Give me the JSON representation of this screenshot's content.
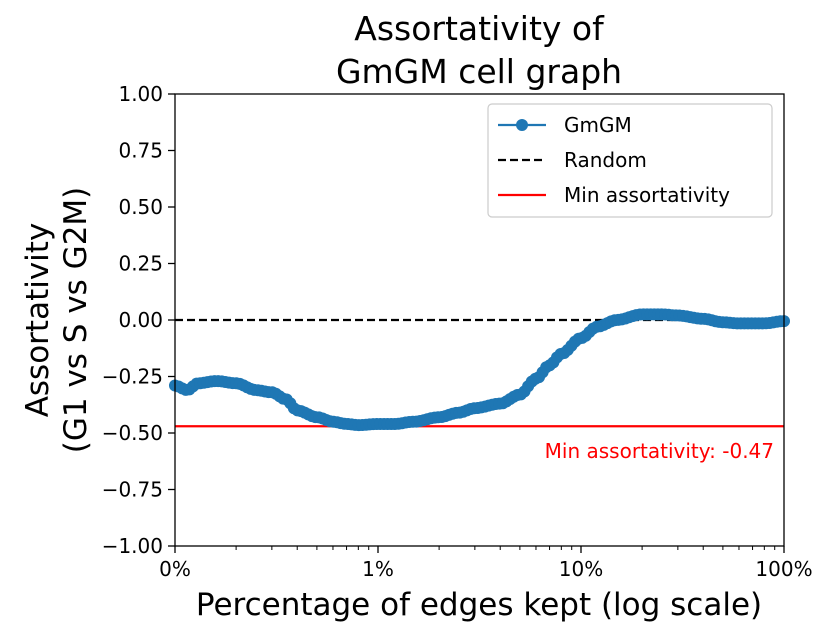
{
  "chart_data": {
    "type": "line",
    "title_lines": [
      "Assortativity of",
      "GmGM cell graph"
    ],
    "xlabel": "Percentage of edges kept (log scale)",
    "ylabel_lines": [
      "Assortativity",
      "(G1 vs S vs G2M)"
    ],
    "x_scale": "log",
    "xlim": [
      0.1,
      100
    ],
    "ylim": [
      -1.0,
      1.0
    ],
    "x_ticks": [
      {
        "value": 0.1,
        "label": "0%"
      },
      {
        "value": 1,
        "label": "1%"
      },
      {
        "value": 10,
        "label": "10%"
      },
      {
        "value": 100,
        "label": "100%"
      }
    ],
    "y_ticks": [
      {
        "value": 1.0,
        "label": "1.00"
      },
      {
        "value": 0.75,
        "label": "0.75"
      },
      {
        "value": 0.5,
        "label": "0.50"
      },
      {
        "value": 0.25,
        "label": "0.25"
      },
      {
        "value": 0.0,
        "label": "0.00"
      },
      {
        "value": -0.25,
        "label": "−0.25"
      },
      {
        "value": -0.5,
        "label": "−0.50"
      },
      {
        "value": -0.75,
        "label": "−0.75"
      },
      {
        "value": -1.0,
        "label": "−1.00"
      }
    ],
    "series": [
      {
        "name": "GmGM",
        "color": "#1f77b4",
        "marker": "circle",
        "anchors": [
          [
            0.1,
            -0.29
          ],
          [
            0.115,
            -0.31
          ],
          [
            0.13,
            -0.28
          ],
          [
            0.16,
            -0.27
          ],
          [
            0.2,
            -0.28
          ],
          [
            0.25,
            -0.31
          ],
          [
            0.3,
            -0.32
          ],
          [
            0.35,
            -0.35
          ],
          [
            0.4,
            -0.4
          ],
          [
            0.5,
            -0.43
          ],
          [
            0.6,
            -0.45
          ],
          [
            0.7,
            -0.46
          ],
          [
            0.8,
            -0.465
          ],
          [
            1.0,
            -0.46
          ],
          [
            1.2,
            -0.46
          ],
          [
            1.5,
            -0.45
          ],
          [
            2.0,
            -0.43
          ],
          [
            2.5,
            -0.41
          ],
          [
            3.0,
            -0.39
          ],
          [
            4.0,
            -0.37
          ],
          [
            5.0,
            -0.33
          ],
          [
            6.0,
            -0.26
          ],
          [
            7.0,
            -0.2
          ],
          [
            8.0,
            -0.15
          ],
          [
            10.0,
            -0.08
          ],
          [
            12.0,
            -0.03
          ],
          [
            15.0,
            0.0
          ],
          [
            20.0,
            0.025
          ],
          [
            25.0,
            0.025
          ],
          [
            30.0,
            0.02
          ],
          [
            40.0,
            0.005
          ],
          [
            50.0,
            -0.01
          ],
          [
            60.0,
            -0.015
          ],
          [
            80.0,
            -0.015
          ],
          [
            100.0,
            -0.005
          ]
        ]
      }
    ],
    "reference_lines": [
      {
        "name": "Random",
        "y": 0.0,
        "color": "#000000",
        "style": "dashed"
      },
      {
        "name": "Min assortativity",
        "y": -0.47,
        "color": "#ff0000",
        "style": "solid"
      }
    ],
    "annotation": {
      "text": "Min assortativity: -0.47",
      "color": "#ff0000",
      "x": 100,
      "y": -0.58
    },
    "legend": {
      "placement": "upper right",
      "entries": [
        "GmGM",
        "Random",
        "Min assortativity"
      ]
    }
  }
}
